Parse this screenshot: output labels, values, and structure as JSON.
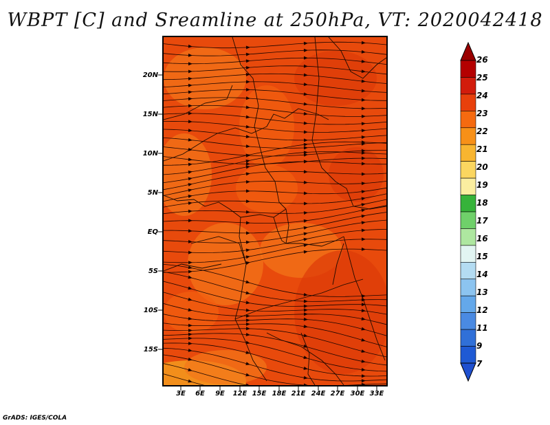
{
  "title": "WBPT [C] and Sreamline at 250hPa, VT: 2020042418",
  "footer": "GrADS: IGES/COLA",
  "map": {
    "lat_labels": [
      "20N",
      "15N",
      "10N",
      "5N",
      "EQ",
      "5S",
      "10S",
      "15S"
    ],
    "lon_labels": [
      "3E",
      "6E",
      "9E",
      "12E",
      "15E",
      "18E",
      "21E",
      "24E",
      "27E",
      "30E",
      "33E"
    ],
    "field_colors": {
      "base": "#e84a0c",
      "warm": "#f4761a",
      "hot": "#f26010",
      "cool": "#dd3a08",
      "yellow": "#f6ab22"
    }
  },
  "colorbar": {
    "labels": [
      "26",
      "25",
      "24",
      "23",
      "22",
      "21",
      "20",
      "19",
      "18",
      "17",
      "16",
      "15",
      "14",
      "13",
      "12",
      "11",
      "9",
      "7"
    ],
    "colors": [
      "#b40000",
      "#d21c0c",
      "#e8400c",
      "#f56a10",
      "#f79018",
      "#f8b530",
      "#fbd660",
      "#fbeea0",
      "#36b33a",
      "#6fd06a",
      "#aee7a0",
      "#e2f5f2",
      "#b4dcf2",
      "#8cc4f0",
      "#64a8ea",
      "#4a8ae2",
      "#3070d8",
      "#1f5ad4"
    ],
    "over_color": "#9a0000",
    "under_color": "#1f50d0"
  }
}
